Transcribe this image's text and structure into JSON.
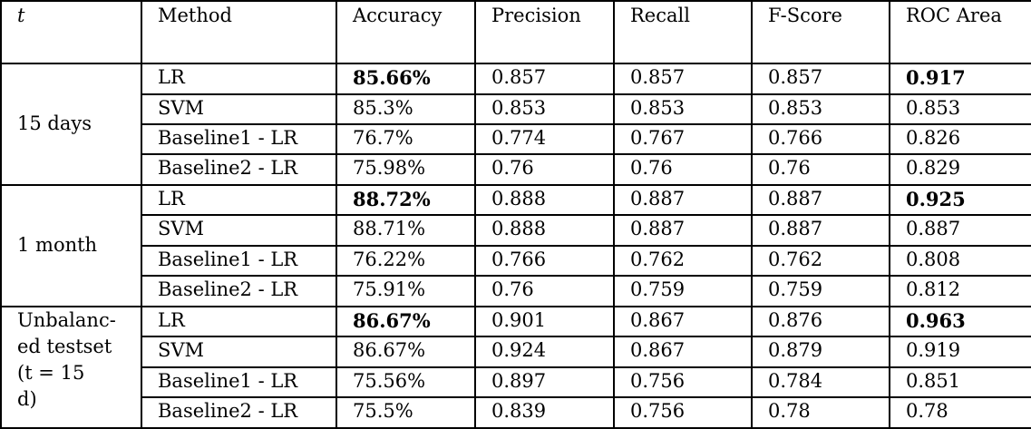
{
  "headers": [
    "t",
    "Method",
    "Accuracy",
    "Precision",
    "Recall",
    "F-Score",
    "ROC Area"
  ],
  "groups": [
    {
      "label": "15 days",
      "rows": [
        {
          "method": "LR",
          "accuracy": "85.66%",
          "precision": "0.857",
          "recall": "0.857",
          "fscore": "0.857",
          "roc": "0.917"
        },
        {
          "method": "SVM",
          "accuracy": "85.3%",
          "precision": "0.853",
          "recall": "0.853",
          "fscore": "0.853",
          "roc": "0.853"
        },
        {
          "method": "Baseline1 - LR",
          "accuracy": "76.7%",
          "precision": "0.774",
          "recall": "0.767",
          "fscore": "0.766",
          "roc": "0.826"
        },
        {
          "method": "Baseline2 - LR",
          "accuracy": "75.98%",
          "precision": "0.76",
          "recall": "0.76",
          "fscore": "0.76",
          "roc": "0.829"
        }
      ]
    },
    {
      "label": "1 month",
      "rows": [
        {
          "method": "LR",
          "accuracy": "88.72%",
          "precision": "0.888",
          "recall": "0.887",
          "fscore": "0.887",
          "roc": "0.925"
        },
        {
          "method": "SVM",
          "accuracy": "88.71%",
          "precision": "0.888",
          "recall": "0.887",
          "fscore": "0.887",
          "roc": "0.887"
        },
        {
          "method": "Baseline1 - LR",
          "accuracy": "76.22%",
          "precision": "0.766",
          "recall": "0.762",
          "fscore": "0.762",
          "roc": "0.808"
        },
        {
          "method": "Baseline2 - LR",
          "accuracy": "75.91%",
          "precision": "0.76",
          "recall": "0.759",
          "fscore": "0.759",
          "roc": "0.812"
        }
      ]
    },
    {
      "label_lines": [
        "Unbalanc-",
        "ed testset",
        "(t = 15",
        "d)"
      ],
      "rows": [
        {
          "method": "LR",
          "accuracy": "86.67%",
          "precision": "0.901",
          "recall": "0.867",
          "fscore": "0.876",
          "roc": "0.963"
        },
        {
          "method": "SVM",
          "accuracy": "86.67%",
          "precision": "0.924",
          "recall": "0.867",
          "fscore": "0.879",
          "roc": "0.919"
        },
        {
          "method": "Baseline1 - LR",
          "accuracy": "75.56%",
          "precision": "0.897",
          "recall": "0.756",
          "fscore": "0.784",
          "roc": "0.851"
        },
        {
          "method": "Baseline2 - LR",
          "accuracy": "75.5%",
          "precision": "0.839",
          "recall": "0.756",
          "fscore": "0.78",
          "roc": "0.78"
        }
      ]
    }
  ]
}
